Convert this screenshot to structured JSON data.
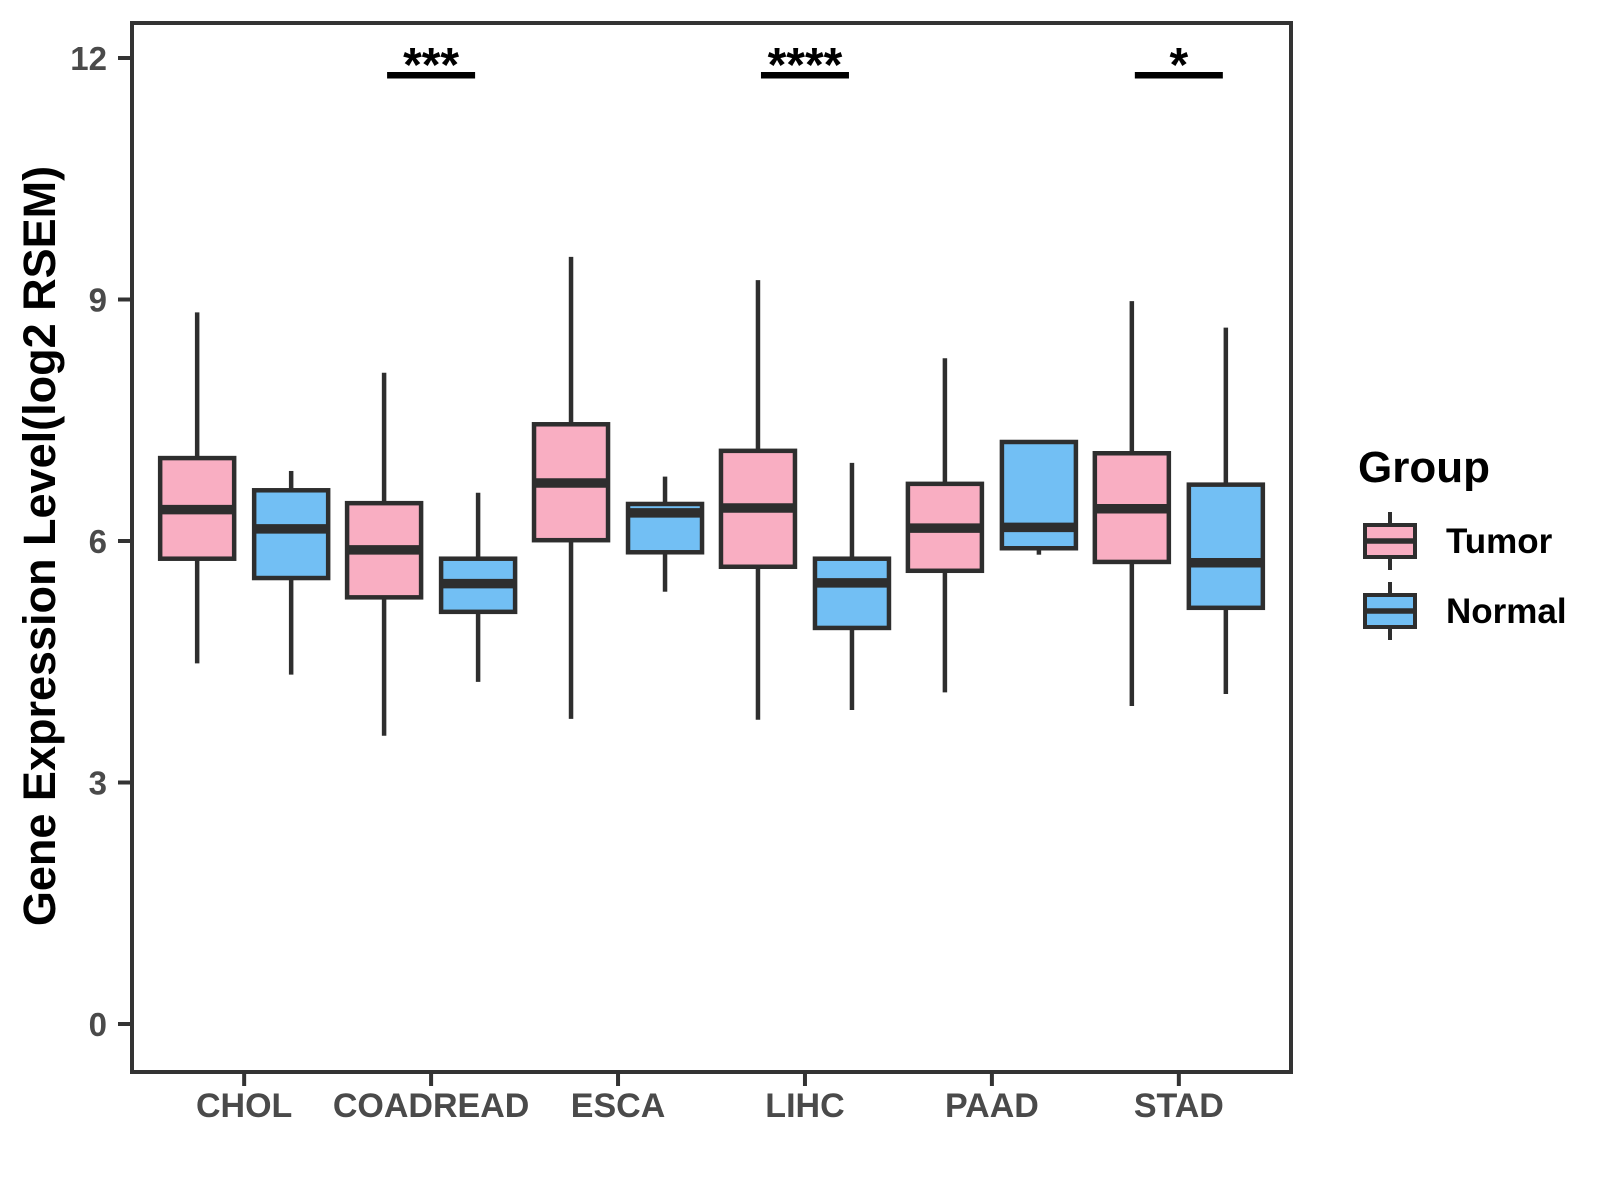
{
  "chart_data": {
    "type": "boxplot",
    "title": "",
    "xlabel": "",
    "ylabel": "Gene Expression Level(log2 RSEM)",
    "yticks": [
      0,
      3,
      6,
      9,
      12
    ],
    "ylim": [
      -0.6,
      12.6
    ],
    "grid": false,
    "categories": [
      "CHOL",
      "COADREAD",
      "ESCA",
      "LIHC",
      "PAAD",
      "STAD"
    ],
    "colors": {
      "tumor_fill": "#F9AEC2",
      "normal_fill": "#72BFF4",
      "box_stroke": "#2E2E2E",
      "panel_border": "#333333",
      "tick_label": "#4A4A4A",
      "annotation": "#000000"
    },
    "series": [
      {
        "name": "Tumor",
        "color": "#F9AEC2",
        "boxes": [
          {
            "category": "CHOL",
            "whisker_low": 4.48,
            "q1": 5.78,
            "median": 6.39,
            "q3": 7.03,
            "whisker_high": 8.84
          },
          {
            "category": "COADREAD",
            "whisker_low": 3.58,
            "q1": 5.3,
            "median": 5.89,
            "q3": 6.47,
            "whisker_high": 8.09
          },
          {
            "category": "ESCA",
            "whisker_low": 3.79,
            "q1": 6.01,
            "median": 6.72,
            "q3": 7.45,
            "whisker_high": 9.53
          },
          {
            "category": "LIHC",
            "whisker_low": 3.78,
            "q1": 5.68,
            "median": 6.41,
            "q3": 7.12,
            "whisker_high": 9.24
          },
          {
            "category": "PAAD",
            "whisker_low": 4.12,
            "q1": 5.63,
            "median": 6.16,
            "q3": 6.71,
            "whisker_high": 8.27
          },
          {
            "category": "STAD",
            "whisker_low": 3.95,
            "q1": 5.74,
            "median": 6.4,
            "q3": 7.09,
            "whisker_high": 8.98
          }
        ]
      },
      {
        "name": "Normal",
        "color": "#72BFF4",
        "boxes": [
          {
            "category": "CHOL",
            "whisker_low": 4.34,
            "q1": 5.54,
            "median": 6.15,
            "q3": 6.63,
            "whisker_high": 6.87
          },
          {
            "category": "COADREAD",
            "whisker_low": 4.25,
            "q1": 5.12,
            "median": 5.47,
            "q3": 5.78,
            "whisker_high": 6.6
          },
          {
            "category": "ESCA",
            "whisker_low": 5.37,
            "q1": 5.86,
            "median": 6.35,
            "q3": 6.46,
            "whisker_high": 6.8
          },
          {
            "category": "LIHC",
            "whisker_low": 3.9,
            "q1": 4.92,
            "median": 5.48,
            "q3": 5.78,
            "whisker_high": 6.97
          },
          {
            "category": "PAAD",
            "whisker_low": 5.83,
            "q1": 5.91,
            "median": 6.17,
            "q3": 7.23,
            "whisker_high": 7.23
          },
          {
            "category": "STAD",
            "whisker_low": 4.1,
            "q1": 5.17,
            "median": 5.73,
            "q3": 6.7,
            "whisker_high": 8.65
          }
        ]
      }
    ],
    "significance": [
      {
        "category": "COADREAD",
        "stars": "***"
      },
      {
        "category": "LIHC",
        "stars": "****"
      },
      {
        "category": "STAD",
        "stars": "*"
      }
    ],
    "legend": {
      "title": "Group",
      "entries": [
        "Tumor",
        "Normal"
      ],
      "position": "right"
    }
  }
}
